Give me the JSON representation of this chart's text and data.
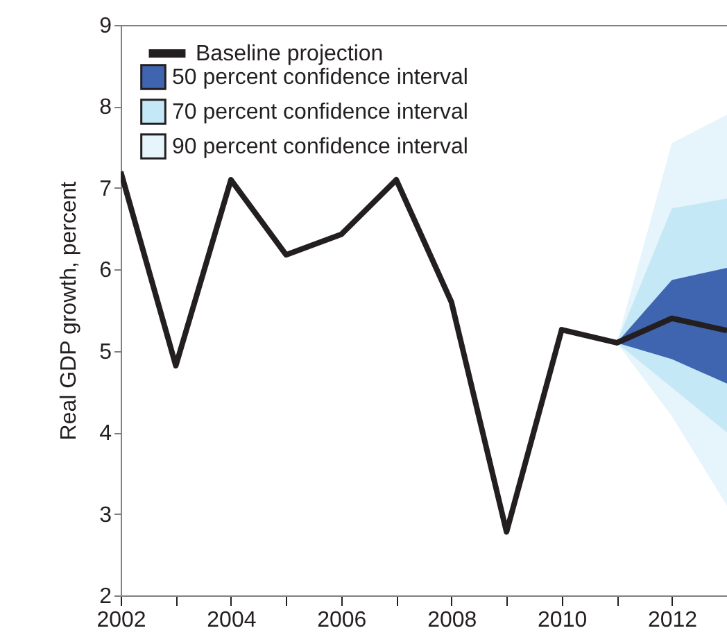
{
  "chart_data": {
    "type": "line",
    "ylabel": "Real GDP growth, percent",
    "x": [
      2002,
      2003,
      2004,
      2005,
      2006,
      2007,
      2008,
      2009,
      2010,
      2011,
      2012,
      2013
    ],
    "series": [
      {
        "name": "Baseline projection",
        "line_style": "solid",
        "color": "#231f20",
        "values": [
          7.2,
          4.82,
          7.1,
          6.18,
          6.43,
          7.1,
          5.6,
          2.78,
          5.26,
          5.1,
          5.4,
          5.25
        ]
      },
      {
        "name": "50 percent confidence interval",
        "type": "area",
        "color": "#3f64b0",
        "x": [
          2011,
          2012,
          2013
        ],
        "values": [
          null,
          null,
          null
        ],
        "lower": [
          5.1,
          4.9,
          4.6
        ],
        "upper": [
          5.1,
          5.87,
          6.02
        ]
      },
      {
        "name": "70 percent confidence interval",
        "type": "area",
        "color": "#c5e8f7",
        "x": [
          2011,
          2012,
          2013
        ],
        "values": [
          null,
          null,
          null
        ],
        "lower": [
          5.1,
          4.55,
          4.0
        ],
        "upper": [
          5.1,
          6.75,
          6.87
        ]
      },
      {
        "name": "90 percent confidence interval",
        "type": "area",
        "color": "#e6f4fb",
        "x": [
          2011,
          2012,
          2013
        ],
        "values": [
          null,
          null,
          null
        ],
        "lower": [
          5.1,
          4.2,
          3.1
        ],
        "upper": [
          5.1,
          7.55,
          7.9
        ]
      }
    ],
    "xlim": [
      2002,
      2013
    ],
    "xticks": [
      2002,
      {
        "value": 2003,
        "label": null
      },
      2004,
      {
        "value": 2005,
        "label": null
      },
      2006,
      {
        "value": 2007,
        "label": null
      },
      2008,
      {
        "value": 2009,
        "label": null
      },
      2010,
      {
        "value": 2011,
        "label": null
      },
      2012,
      {
        "value": 2013,
        "label": null
      }
    ],
    "ylim": [
      2,
      9
    ],
    "yticks": [
      2,
      3,
      4,
      5,
      6,
      7,
      8,
      9
    ],
    "grid": false,
    "legend": "top left"
  }
}
